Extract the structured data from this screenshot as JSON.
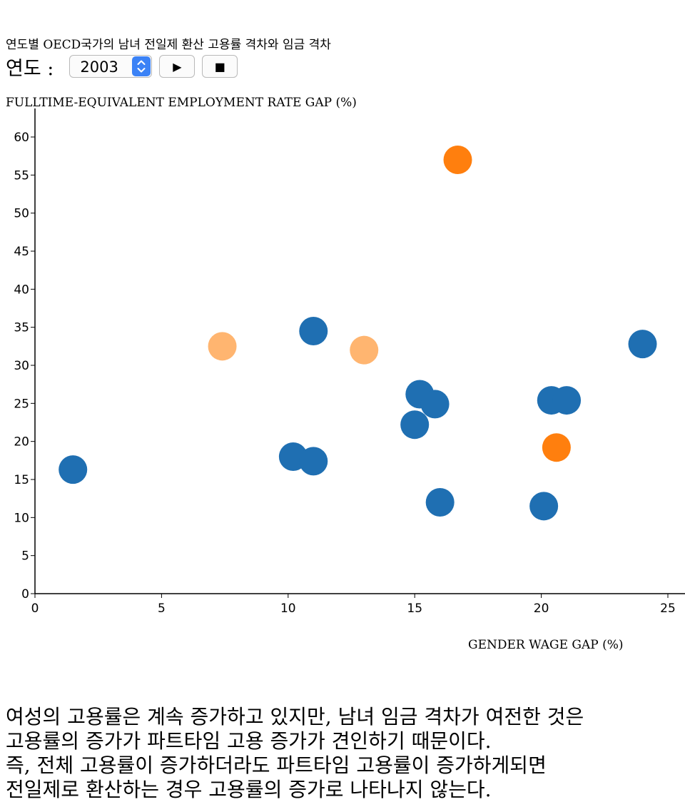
{
  "title": "연도별 OECD국가의 남녀 전일제 환산 고용률 격차와 임금 격차",
  "controls": {
    "year_label": "연도 :",
    "selected_year": "2003",
    "play_symbol": "▶",
    "stop_symbol": "■"
  },
  "description": [
    "여성의 고용률은 계속 증가하고 있지만, 남녀 임금 격차가 여전한 것은",
    "고용률의 증가가 파트타임 고용 증가가 견인하기 때문이다.",
    "즉, 전체 고용률이 증가하더라도 파트타임 고용률이 증가하게되면",
    "전일제로 환산하는 경우 고용률의 증가로 나타나지 않는다."
  ],
  "colors": {
    "default": "#1f6fb2",
    "highlight": "#ff7f0e",
    "light_highlight": "#ffb570"
  },
  "chart_data": {
    "type": "scatter",
    "xlabel": "GENDER WAGE GAP (%)",
    "ylabel": "FULLTIME-EQUIVALENT EMPLOYMENT RATE GAP (%)",
    "xlim": [
      0,
      25
    ],
    "ylim": [
      0,
      60
    ],
    "x_ticks": [
      "0",
      "5",
      "10",
      "15",
      "20",
      "25"
    ],
    "y_ticks": [
      "0",
      "5",
      "10",
      "15",
      "20",
      "25",
      "30",
      "35",
      "40",
      "45",
      "50",
      "55",
      "60"
    ],
    "points": [
      {
        "x": 1.5,
        "y": 16.3,
        "color": "default"
      },
      {
        "x": 7.4,
        "y": 32.5,
        "color": "light_highlight"
      },
      {
        "x": 10.2,
        "y": 18.0,
        "color": "default"
      },
      {
        "x": 11.0,
        "y": 17.4,
        "color": "default"
      },
      {
        "x": 11.0,
        "y": 34.5,
        "color": "default"
      },
      {
        "x": 13.0,
        "y": 32.0,
        "color": "light_highlight"
      },
      {
        "x": 15.0,
        "y": 22.2,
        "color": "default"
      },
      {
        "x": 15.2,
        "y": 26.2,
        "color": "default"
      },
      {
        "x": 15.8,
        "y": 24.9,
        "color": "default"
      },
      {
        "x": 16.0,
        "y": 12.0,
        "color": "default"
      },
      {
        "x": 16.7,
        "y": 57.0,
        "color": "highlight"
      },
      {
        "x": 20.1,
        "y": 11.5,
        "color": "default"
      },
      {
        "x": 20.4,
        "y": 25.4,
        "color": "default"
      },
      {
        "x": 20.6,
        "y": 19.2,
        "color": "highlight"
      },
      {
        "x": 21.0,
        "y": 25.4,
        "color": "default"
      },
      {
        "x": 24.0,
        "y": 32.8,
        "color": "default"
      }
    ]
  }
}
